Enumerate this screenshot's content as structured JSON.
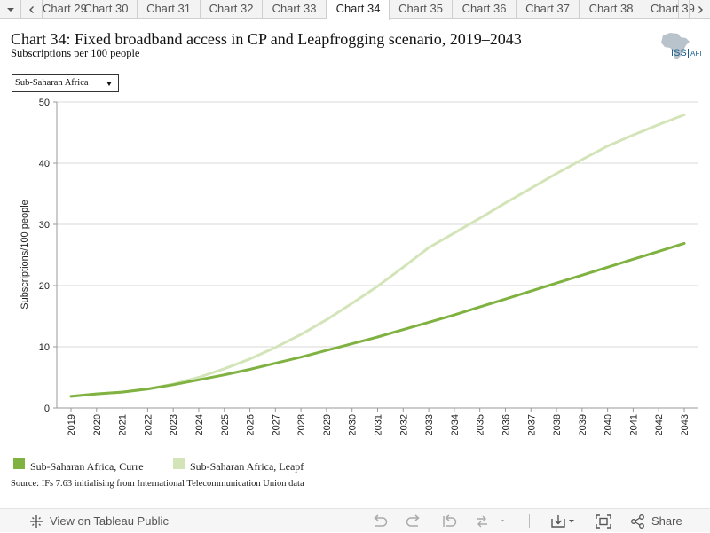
{
  "tabs": {
    "items": [
      "Chart 29",
      "Chart 30",
      "Chart 31",
      "Chart 32",
      "Chart 33",
      "Chart 34",
      "Chart 35",
      "Chart 36",
      "Chart 37",
      "Chart 38",
      "Chart 39"
    ],
    "active_index": 5,
    "prev_icon": "chevron-left-icon",
    "next_icon": "chevron-right-icon",
    "menu_icon": "caret-down-icon"
  },
  "header": {
    "title": "Chart 34: Fixed broadband access in CP and Leapfrogging scenario, 2019–2043",
    "subtitle": "Subscriptions per 100 people",
    "logo_text": "ISS",
    "logo_suffix": "AFI"
  },
  "filter": {
    "selected": "Sub-Saharan Africa"
  },
  "chart_data": {
    "type": "line",
    "ylabel": "Subscriptions/100 people",
    "xlabel": "",
    "ylim": [
      0,
      50
    ],
    "yticks": [
      0,
      10,
      20,
      30,
      40,
      50
    ],
    "grid": true,
    "legend_position": "bottom-left",
    "x": [
      "2019",
      "2020",
      "2021",
      "2022",
      "2023",
      "2024",
      "2025",
      "2026",
      "2027",
      "2028",
      "2029",
      "2030",
      "2031",
      "2032",
      "2033",
      "2034",
      "2035",
      "2036",
      "2037",
      "2038",
      "2039",
      "2040",
      "2041",
      "2042",
      "2043"
    ],
    "series": [
      {
        "name": "Sub-Saharan Africa, Curre",
        "color": "#7fb241",
        "values": [
          1.9,
          2.3,
          2.6,
          3.1,
          3.8,
          4.6,
          5.4,
          6.3,
          7.3,
          8.3,
          9.4,
          10.5,
          11.6,
          12.8,
          14.0,
          15.2,
          16.5,
          17.8,
          19.1,
          20.4,
          21.7,
          23.0,
          24.3,
          25.6,
          26.9
        ]
      },
      {
        "name": "Sub-Saharan Africa, Leapf",
        "color": "#d3e5b8",
        "values": [
          1.9,
          2.3,
          2.6,
          3.1,
          3.9,
          5.0,
          6.4,
          8.0,
          9.9,
          12.0,
          14.4,
          17.1,
          19.9,
          23.0,
          26.2,
          28.6,
          31.0,
          33.5,
          35.9,
          38.3,
          40.6,
          42.8,
          44.6,
          46.3,
          47.9
        ]
      }
    ]
  },
  "source": "Source: IFs 7.63 initialising from International Telecommunication Union data",
  "toolbar": {
    "view_label": "View on Tableau Public",
    "share_label": "Share",
    "icons": [
      "tableau-icon",
      "undo-icon",
      "redo-icon",
      "revert-icon",
      "refresh-icon",
      "download-icon",
      "fullscreen-icon",
      "share-icon"
    ]
  }
}
